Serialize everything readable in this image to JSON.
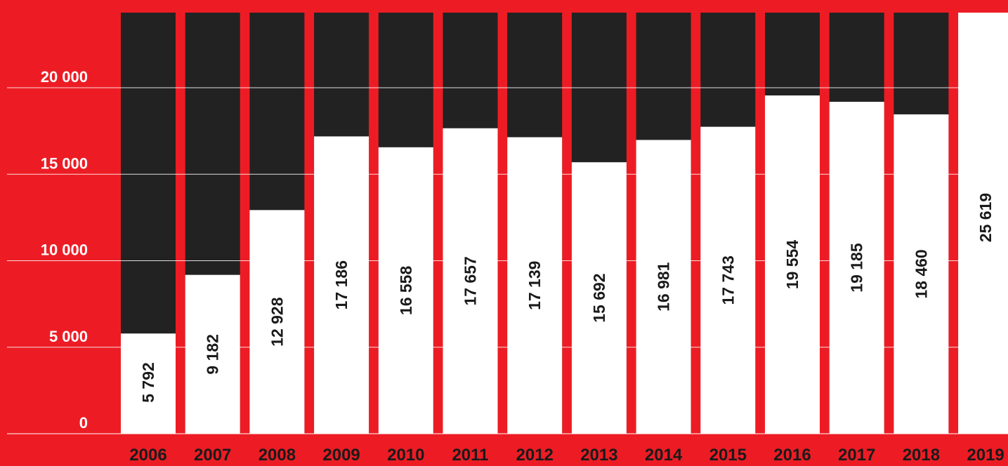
{
  "colors": {
    "background": "#ed1c24",
    "bar_track": "#222222",
    "bar_fill": "#ffffff",
    "gridline": "#ffffff",
    "axis_text": "#ffffff",
    "value_text": "#1a1a1a"
  },
  "chart_data": {
    "type": "bar",
    "title": "",
    "xlabel": "",
    "ylabel": "",
    "categories": [
      "2006",
      "2007",
      "2008",
      "2009",
      "2010",
      "2011",
      "2012",
      "2013",
      "2014",
      "2015",
      "2016",
      "2017",
      "2018",
      "2019"
    ],
    "values": [
      5792,
      9182,
      12928,
      17186,
      16558,
      17657,
      17139,
      15692,
      16981,
      17743,
      19554,
      19185,
      18460,
      25619
    ],
    "value_labels": [
      "5 792",
      "9 182",
      "12 928",
      "17 186",
      "16 558",
      "17 657",
      "17 139",
      "15 692",
      "16 981",
      "17 743",
      "19 554",
      "19 185",
      "18 460",
      "25 619"
    ],
    "yticks": [
      0,
      5000,
      10000,
      15000,
      20000
    ],
    "ytick_labels": [
      "0",
      "5 000",
      "10 000",
      "15 000",
      "20 000"
    ],
    "ylim": [
      0,
      24000
    ],
    "grid": true,
    "value_labels_rotated": true,
    "legend": "none"
  }
}
